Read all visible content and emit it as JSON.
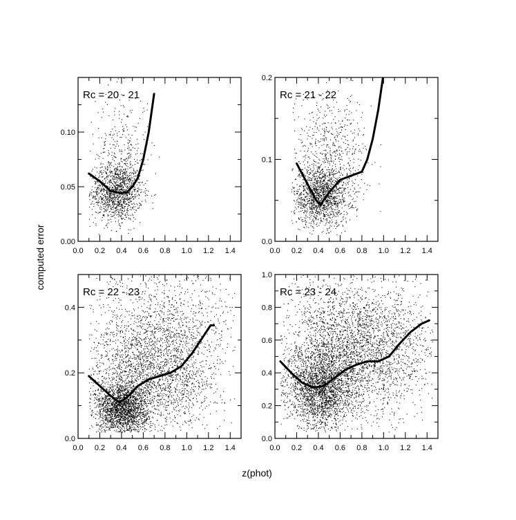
{
  "figure": {
    "xlabel": "z(phot)",
    "ylabel": "computed error"
  },
  "chart_data": [
    {
      "type": "scatter",
      "title": "Rc = 20 - 21",
      "xlim": [
        0.0,
        1.5
      ],
      "ylim": [
        0.0,
        0.15
      ],
      "xticks": [
        0.0,
        0.2,
        0.4,
        0.6,
        0.8,
        1.0,
        1.2,
        1.4
      ],
      "xtick_labels": [
        "0.0",
        "0.2",
        "0.4",
        "0.6",
        "0.8",
        "1.0",
        "1.2",
        "1.4"
      ],
      "yticks": [
        0.0,
        0.05,
        0.1
      ],
      "ytick_labels": [
        "0.00",
        "0.05",
        "0.10"
      ],
      "grid": false,
      "series": [
        {
          "kind": "points",
          "clusters": [
            {
              "cx": 0.35,
              "cy": 0.045,
              "sx": 0.12,
              "sy": 0.013,
              "n": 1200,
              "xmin": 0.1,
              "xmax": 0.72
            },
            {
              "cx": 0.4,
              "cy": 0.08,
              "sx": 0.12,
              "sy": 0.03,
              "n": 350,
              "xmin": 0.1,
              "xmax": 0.75
            }
          ]
        },
        {
          "kind": "curve",
          "x": [
            0.1,
            0.2,
            0.3,
            0.4,
            0.45,
            0.5,
            0.55,
            0.6,
            0.65,
            0.7
          ],
          "y": [
            0.062,
            0.055,
            0.046,
            0.044,
            0.045,
            0.05,
            0.058,
            0.075,
            0.1,
            0.135
          ]
        }
      ]
    },
    {
      "type": "scatter",
      "title": "Rc = 21 - 22",
      "xlim": [
        0.0,
        1.5
      ],
      "ylim": [
        0.0,
        0.2
      ],
      "xticks": [
        0.0,
        0.2,
        0.4,
        0.6,
        0.8,
        1.0,
        1.2,
        1.4
      ],
      "xtick_labels": [
        "0.0",
        "0.2",
        "0.4",
        "0.6",
        "0.8",
        "1.0",
        "1.2",
        "1.4"
      ],
      "yticks": [
        0.0,
        0.1,
        0.2
      ],
      "ytick_labels": [
        "0.0",
        "0.1",
        "0.2"
      ],
      "grid": false,
      "series": [
        {
          "kind": "points",
          "clusters": [
            {
              "cx": 0.42,
              "cy": 0.055,
              "sx": 0.13,
              "sy": 0.018,
              "n": 1400,
              "xmin": 0.15,
              "xmax": 0.9
            },
            {
              "cx": 0.5,
              "cy": 0.11,
              "sx": 0.18,
              "sy": 0.035,
              "n": 600,
              "xmin": 0.15,
              "xmax": 1.15
            }
          ]
        },
        {
          "kind": "curve",
          "x": [
            0.2,
            0.3,
            0.38,
            0.42,
            0.5,
            0.6,
            0.7,
            0.8,
            0.85,
            0.9,
            0.95,
            1.0
          ],
          "y": [
            0.095,
            0.07,
            0.05,
            0.045,
            0.06,
            0.075,
            0.08,
            0.085,
            0.1,
            0.125,
            0.16,
            0.205
          ]
        }
      ]
    },
    {
      "type": "scatter",
      "title": "Rc = 22 - 23",
      "xlim": [
        0.0,
        1.5
      ],
      "ylim": [
        0.0,
        0.5
      ],
      "xticks": [
        0.0,
        0.2,
        0.4,
        0.6,
        0.8,
        1.0,
        1.2,
        1.4
      ],
      "xtick_labels": [
        "0.0",
        "0.2",
        "0.4",
        "0.6",
        "0.8",
        "1.0",
        "1.2",
        "1.4"
      ],
      "yticks": [
        0.0,
        0.2,
        0.4
      ],
      "ytick_labels": [
        "0.0",
        "0.2",
        "0.4"
      ],
      "grid": false,
      "series": [
        {
          "kind": "points",
          "clusters": [
            {
              "cx": 0.4,
              "cy": 0.09,
              "sx": 0.12,
              "sy": 0.04,
              "n": 2000,
              "xmin": 0.1,
              "xmax": 1.0
            },
            {
              "cx": 0.7,
              "cy": 0.2,
              "sx": 0.3,
              "sy": 0.09,
              "n": 2200,
              "xmin": 0.1,
              "xmax": 1.45
            },
            {
              "cx": 0.8,
              "cy": 0.35,
              "sx": 0.35,
              "sy": 0.1,
              "n": 900,
              "xmin": 0.1,
              "xmax": 1.45
            }
          ]
        },
        {
          "kind": "curve",
          "x": [
            0.1,
            0.2,
            0.3,
            0.38,
            0.45,
            0.55,
            0.65,
            0.75,
            0.85,
            0.95,
            1.05,
            1.15,
            1.22,
            1.25
          ],
          "y": [
            0.19,
            0.16,
            0.13,
            0.11,
            0.125,
            0.16,
            0.18,
            0.19,
            0.2,
            0.22,
            0.26,
            0.31,
            0.345,
            0.345
          ]
        }
      ]
    },
    {
      "type": "scatter",
      "title": "Rc = 23 - 24",
      "xlim": [
        0.0,
        1.5
      ],
      "ylim": [
        0.0,
        1.0
      ],
      "xticks": [
        0.0,
        0.2,
        0.4,
        0.6,
        0.8,
        1.0,
        1.2,
        1.4
      ],
      "xtick_labels": [
        "0.0",
        "0.2",
        "0.4",
        "0.6",
        "0.8",
        "1.0",
        "1.2",
        "1.4"
      ],
      "yticks": [
        0.0,
        0.2,
        0.4,
        0.6,
        0.8,
        1.0
      ],
      "ytick_labels": [
        "0.0",
        "0.2",
        "0.4",
        "0.6",
        "0.8",
        "1.0"
      ],
      "grid": false,
      "series": [
        {
          "kind": "points",
          "clusters": [
            {
              "cx": 0.42,
              "cy": 0.3,
              "sx": 0.15,
              "sy": 0.12,
              "n": 2200,
              "xmin": 0.05,
              "xmax": 1.45
            },
            {
              "cx": 0.75,
              "cy": 0.55,
              "sx": 0.35,
              "sy": 0.2,
              "n": 3200,
              "xmin": 0.05,
              "xmax": 1.45
            }
          ]
        },
        {
          "kind": "curve",
          "x": [
            0.05,
            0.15,
            0.25,
            0.35,
            0.45,
            0.55,
            0.65,
            0.75,
            0.85,
            0.95,
            1.05,
            1.15,
            1.25,
            1.35,
            1.42
          ],
          "y": [
            0.47,
            0.4,
            0.34,
            0.31,
            0.32,
            0.37,
            0.42,
            0.45,
            0.47,
            0.47,
            0.5,
            0.58,
            0.65,
            0.7,
            0.72
          ]
        }
      ]
    }
  ]
}
